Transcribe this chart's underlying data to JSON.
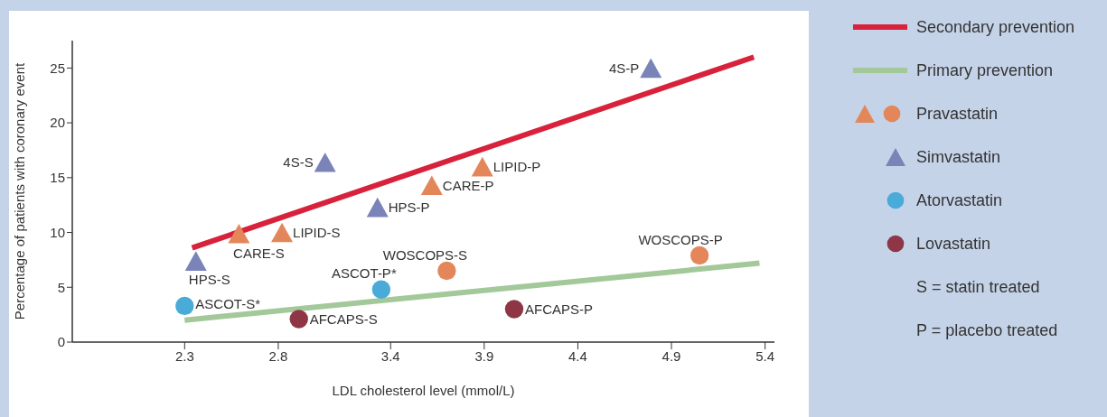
{
  "chart_data": {
    "type": "scatter",
    "xlabel": "LDL cholesterol level (mmol/L)",
    "ylabel": "Percentage of patients with coronary event",
    "xlim": [
      1.7,
      5.45
    ],
    "xticks": [
      2.3,
      2.8,
      3.4,
      3.9,
      4.4,
      4.9,
      5.4
    ],
    "ylim": [
      0,
      27.5
    ],
    "yticks": [
      0,
      5,
      10,
      15,
      20,
      25
    ],
    "grid": false,
    "legend": "right",
    "series": [
      {
        "name": "Secondary prevention",
        "type": "line",
        "color": "#d8213a",
        "marker": "none",
        "x": [
          2.34,
          5.34
        ],
        "values": [
          8.6,
          26.0
        ]
      },
      {
        "name": "Primary prevention",
        "type": "line",
        "color": "#a3c89a",
        "marker": "none",
        "x": [
          2.3,
          5.37
        ],
        "values": [
          2.0,
          7.2
        ]
      },
      {
        "name": "Pravastatin",
        "color": "#e3875b",
        "marker": "triangle",
        "x": [
          2.59,
          3.62,
          2.82,
          3.89
        ],
        "values": [
          9.9,
          14.3,
          10.0,
          16.0
        ]
      },
      {
        "color": "#e3875b",
        "marker": "circle",
        "x": [
          3.7,
          5.05
        ],
        "values": [
          6.5,
          7.9
        ]
      },
      {
        "name": "Simvastatin",
        "color": "#7a84b8",
        "marker": "triangle",
        "x": [
          3.05,
          4.79,
          2.36,
          3.33
        ],
        "values": [
          16.4,
          25.0,
          7.4,
          12.3
        ]
      },
      {
        "name": "Atorvastatin",
        "color": "#4aaad8",
        "marker": "circle",
        "x": [
          2.3,
          3.35
        ],
        "values": [
          3.3,
          4.8
        ]
      },
      {
        "name": "Lovastatin",
        "color": "#8e3646",
        "marker": "circle",
        "x": [
          2.91,
          4.06
        ],
        "values": [
          2.1,
          3.0
        ]
      }
    ],
    "annotations": [
      {
        "text": "4S-P",
        "x": 4.79,
        "y": 25.0
      },
      {
        "text": "4S-S",
        "x": 3.05,
        "y": 16.4
      },
      {
        "text": "LIPID-P",
        "x": 3.89,
        "y": 16.0
      },
      {
        "text": "CARE-P",
        "x": 3.62,
        "y": 14.3
      },
      {
        "text": "HPS-P",
        "x": 3.33,
        "y": 12.3
      },
      {
        "text": "LIPID-S",
        "x": 2.82,
        "y": 10.0
      },
      {
        "text": "CARE-S",
        "x": 2.59,
        "y": 9.9
      },
      {
        "text": "HPS-S",
        "x": 2.36,
        "y": 7.4
      },
      {
        "text": "ASCOT-S*",
        "x": 2.3,
        "y": 3.3
      },
      {
        "text": "ASCOT-P*",
        "x": 3.35,
        "y": 4.8
      },
      {
        "text": "WOSCOPS-S",
        "x": 3.7,
        "y": 6.5
      },
      {
        "text": "WOSCOPS-P",
        "x": 5.05,
        "y": 7.9
      },
      {
        "text": "AFCAPS-S",
        "x": 2.91,
        "y": 2.1
      },
      {
        "text": "AFCAPS-P",
        "x": 4.06,
        "y": 3.0
      },
      "S = statin treated",
      "P = placebo treated"
    ]
  }
}
